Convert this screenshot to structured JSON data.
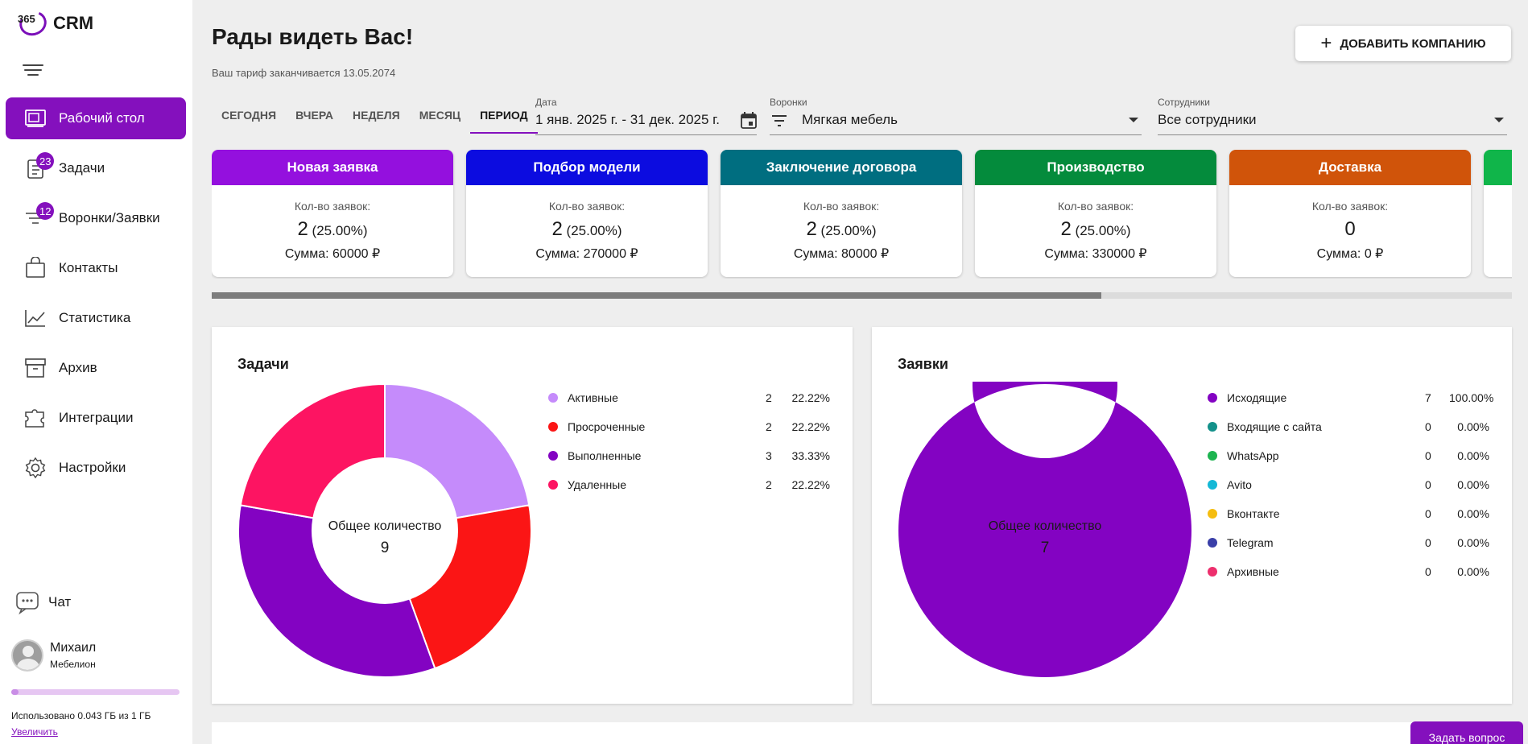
{
  "app": {
    "logo_num": "365",
    "logo_text": "CRM"
  },
  "sidebar": {
    "items": [
      {
        "label": "Рабочий стол",
        "badge": ""
      },
      {
        "label": "Задачи",
        "badge": "23"
      },
      {
        "label": "Воронки/Заявки",
        "badge": "12"
      },
      {
        "label": "Контакты",
        "badge": ""
      },
      {
        "label": "Статистика",
        "badge": ""
      },
      {
        "label": "Архив",
        "badge": ""
      },
      {
        "label": "Интеграции",
        "badge": ""
      },
      {
        "label": "Настройки",
        "badge": ""
      }
    ],
    "chat_label": "Чат",
    "user": {
      "name": "Михаил",
      "org": "Мебелион"
    },
    "storage": {
      "text": "Использовано 0.043 ГБ из 1 ГБ",
      "link": "Увеличить",
      "used_fraction": 0.043
    }
  },
  "header": {
    "greeting": "Рады видеть Вас!",
    "tariff": "Ваш тариф заканчивается 13.05.2074",
    "add_company": "ДОБАВИТЬ КОМПАНИЮ"
  },
  "filters": {
    "tabs": [
      "СЕГОДНЯ",
      "ВЧЕРА",
      "НЕДЕЛЯ",
      "МЕСЯЦ",
      "ПЕРИОД"
    ],
    "active_tab": "ПЕРИОД",
    "date": {
      "label": "Дата",
      "value": "1 янв. 2025 г. - 31 дек. 2025 г."
    },
    "funnel": {
      "label": "Воронки",
      "value": "Мягкая мебель"
    },
    "employees": {
      "label": "Сотрудники",
      "value": "Все сотрудники"
    }
  },
  "stages": {
    "count_label": "Кол-во заявок:",
    "items": [
      {
        "title": "Новая заявка",
        "color": "#9410de",
        "count": "2",
        "pct": "(25.00%)",
        "sum": "Сумма: 60000 ₽"
      },
      {
        "title": "Подбор модели",
        "color": "#0c0ce0",
        "count": "2",
        "pct": "(25.00%)",
        "sum": "Сумма: 270000 ₽"
      },
      {
        "title": "Заключение договора",
        "color": "#006e80",
        "count": "2",
        "pct": "(25.00%)",
        "sum": "Сумма: 80000 ₽"
      },
      {
        "title": "Производство",
        "color": "#048b3c",
        "count": "2",
        "pct": "(25.00%)",
        "sum": "Сумма: 330000 ₽"
      },
      {
        "title": "Доставка",
        "color": "#d0540a",
        "count": "0",
        "pct": "",
        "sum": "Сумма: 0 ₽"
      },
      {
        "title": "",
        "color": "#10b54a",
        "count": "",
        "pct": "",
        "sum": ""
      }
    ],
    "scroll_fraction": 0.684
  },
  "tasks_panel": {
    "title": "Задачи",
    "center_label": "Общее количество",
    "total": "9",
    "chart_data": {
      "type": "pie",
      "categories": [
        "Активные",
        "Просроченные",
        "Выполненные",
        "Удаленные"
      ],
      "values": [
        2,
        2,
        3,
        2
      ],
      "percents": [
        "22.22%",
        "22.22%",
        "33.33%",
        "22.22%"
      ],
      "colors": [
        "#c58bfb",
        "#fb1515",
        "#8303c2",
        "#fd1462"
      ]
    }
  },
  "requests_panel": {
    "title": "Заявки",
    "center_label": "Общее количество",
    "total": "7",
    "chart_data": {
      "type": "pie",
      "categories": [
        "Исходящие",
        "Входящие с сайта",
        "WhatsApp",
        "Avito",
        "Вконтакте",
        "Telegram",
        "Архивные"
      ],
      "values": [
        7,
        0,
        0,
        0,
        0,
        0,
        0
      ],
      "percents": [
        "100.00%",
        "0.00%",
        "0.00%",
        "0.00%",
        "0.00%",
        "0.00%",
        "0.00%"
      ],
      "colors": [
        "#8303c2",
        "#13918a",
        "#1db450",
        "#14b8d6",
        "#f5bd10",
        "#3a3fa8",
        "#ed2f6d"
      ]
    }
  },
  "ask_button": "Задать вопрос"
}
